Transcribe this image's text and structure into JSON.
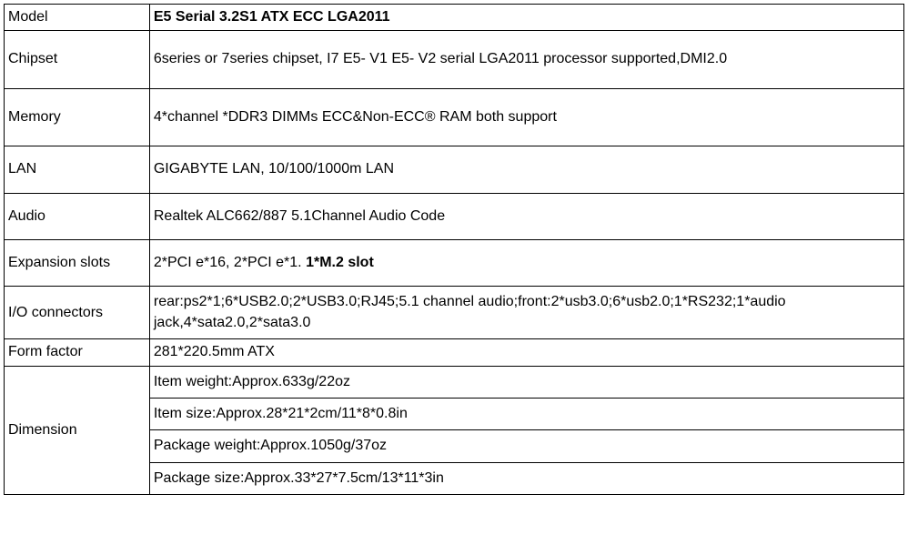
{
  "table": {
    "columns": [
      "label",
      "value"
    ],
    "label_col_width": 160,
    "value_col_width": 830,
    "border_color": "#000000",
    "background_color": "#ffffff",
    "font_family": "Arial",
    "base_font_size": 16,
    "text_color": "#000000",
    "rows": {
      "model": {
        "label": "Model",
        "value": "E5 Serial 3.2S1 ATX  ECC  LGA2011",
        "value_bold": true
      },
      "chipset": {
        "label": "Chipset",
        "value": " 6series or 7series chipset, I7 E5- V1 E5- V2 serial LGA2011 processor supported,DMI2.0"
      },
      "memory": {
        "label": "Memory",
        "value": "4*channel *DDR3 DIMMs  ECC&Non-ECC® RAM both support"
      },
      "lan": {
        "label": "LAN",
        "value": "GIGABYTE LAN, 10/100/1000m LAN"
      },
      "audio": {
        "label": "Audio",
        "value": "Realtek ALC662/887 5.1Channel Audio Code"
      },
      "expansion": {
        "label": "Expansion slots",
        "value_prefix": "2*PCI e*16, 2*PCI e*1. ",
        "value_bold_part": "1*M.2 slot"
      },
      "io": {
        "label": "I/O connectors",
        "value": "rear:ps2*1;6*USB2.0;2*USB3.0;RJ45;5.1 channel audio;front:2*usb3.0;6*usb2.0;1*RS232;1*audio jack,4*sata2.0,2*sata3.0"
      },
      "form": {
        "label": "Form factor",
        "value": "281*220.5mm ATX"
      },
      "dimension": {
        "label": "Dimension",
        "line1": "Item weight:Approx.633g/22oz",
        "line2": "Item size:Approx.28*21*2cm/11*8*0.8in",
        "line3": "Package weight:Approx.1050g/37oz",
        "line4": "Package size:Approx.33*27*7.5cm/13*11*3in"
      }
    }
  }
}
